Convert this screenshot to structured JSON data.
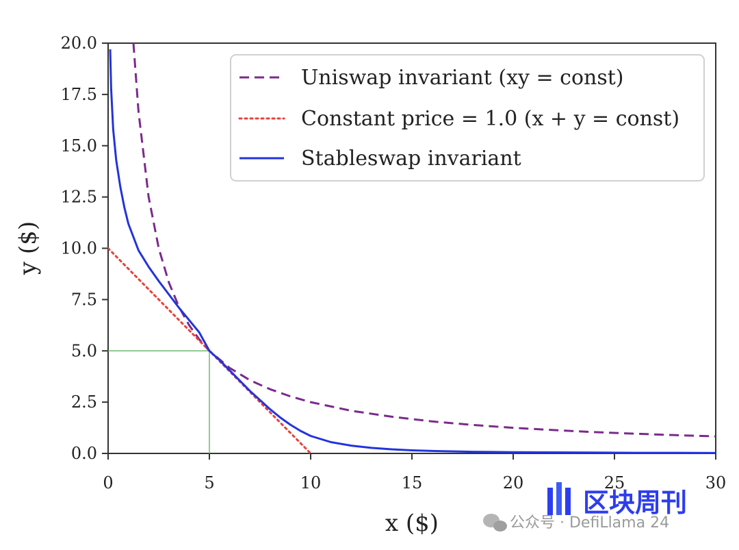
{
  "chart_data": {
    "type": "line",
    "title": "",
    "xlabel": "x ($)",
    "ylabel": "y ($)",
    "xlim": [
      0,
      30
    ],
    "ylim": [
      0,
      20
    ],
    "xticks": [
      "0",
      "5",
      "10",
      "15",
      "20",
      "25",
      "30"
    ],
    "yticks": [
      "0.0",
      "2.5",
      "5.0",
      "7.5",
      "10.0",
      "12.5",
      "15.0",
      "17.5",
      "20.0"
    ],
    "grid": false,
    "legend_position": "top-right",
    "series": [
      {
        "name": "Uniswap invariant (xy = const)",
        "style": "dashed",
        "color": "#7b2a8c",
        "x": [
          1.25,
          1.5,
          2,
          2.5,
          3,
          3.5,
          4,
          4.5,
          5,
          6,
          7,
          8,
          9,
          10,
          12,
          14,
          16,
          18,
          20,
          22,
          24,
          26,
          28,
          30
        ],
        "y": [
          20.0,
          16.67,
          12.5,
          10.0,
          8.33,
          7.14,
          6.25,
          5.56,
          5.0,
          4.17,
          3.57,
          3.13,
          2.78,
          2.5,
          2.08,
          1.79,
          1.56,
          1.39,
          1.25,
          1.14,
          1.04,
          0.96,
          0.89,
          0.83
        ]
      },
      {
        "name": "Constant price = 1.0 (x + y = const)",
        "style": "dotted",
        "color": "#e8413a",
        "x": [
          0,
          10
        ],
        "y": [
          10,
          0
        ]
      },
      {
        "name": "Stableswap invariant",
        "style": "solid",
        "color": "#2233dd",
        "x": [
          0.1,
          0.15,
          0.25,
          0.4,
          0.6,
          0.8,
          1.0,
          1.5,
          2.0,
          2.5,
          3.0,
          3.5,
          4.0,
          4.5,
          5.0,
          5.5,
          6.0,
          6.5,
          7.0,
          7.5,
          8.0,
          8.5,
          9.0,
          9.5,
          10.0,
          11.0,
          12.0,
          13.0,
          14.0,
          15.0,
          16.0,
          17.0,
          18.0,
          19.0,
          20.0,
          22.0,
          24.0,
          26.0,
          28.0,
          30.0
        ],
        "y": [
          19.7,
          17.8,
          15.8,
          14.3,
          13.0,
          12.0,
          11.2,
          9.9,
          9.1,
          8.4,
          7.75,
          7.1,
          6.5,
          5.9,
          5.0,
          4.55,
          4.05,
          3.55,
          3.05,
          2.6,
          2.15,
          1.75,
          1.4,
          1.1,
          0.85,
          0.55,
          0.38,
          0.27,
          0.2,
          0.15,
          0.12,
          0.1,
          0.08,
          0.07,
          0.06,
          0.05,
          0.04,
          0.03,
          0.03,
          0.02
        ]
      }
    ],
    "reference_lines": [
      {
        "name": "x = 5 guide",
        "color": "#6fb96f",
        "x": [
          5,
          5
        ],
        "y": [
          0,
          5
        ]
      },
      {
        "name": "y = 5 guide",
        "color": "#6fb96f",
        "x": [
          0,
          5
        ],
        "y": [
          5,
          5
        ]
      }
    ]
  },
  "watermark": {
    "source_text": "公众号 · DefiLlama 24",
    "brand_text": "区块周刊",
    "brand_color": "#2c3df0",
    "icon_name": "wechat-icon"
  }
}
